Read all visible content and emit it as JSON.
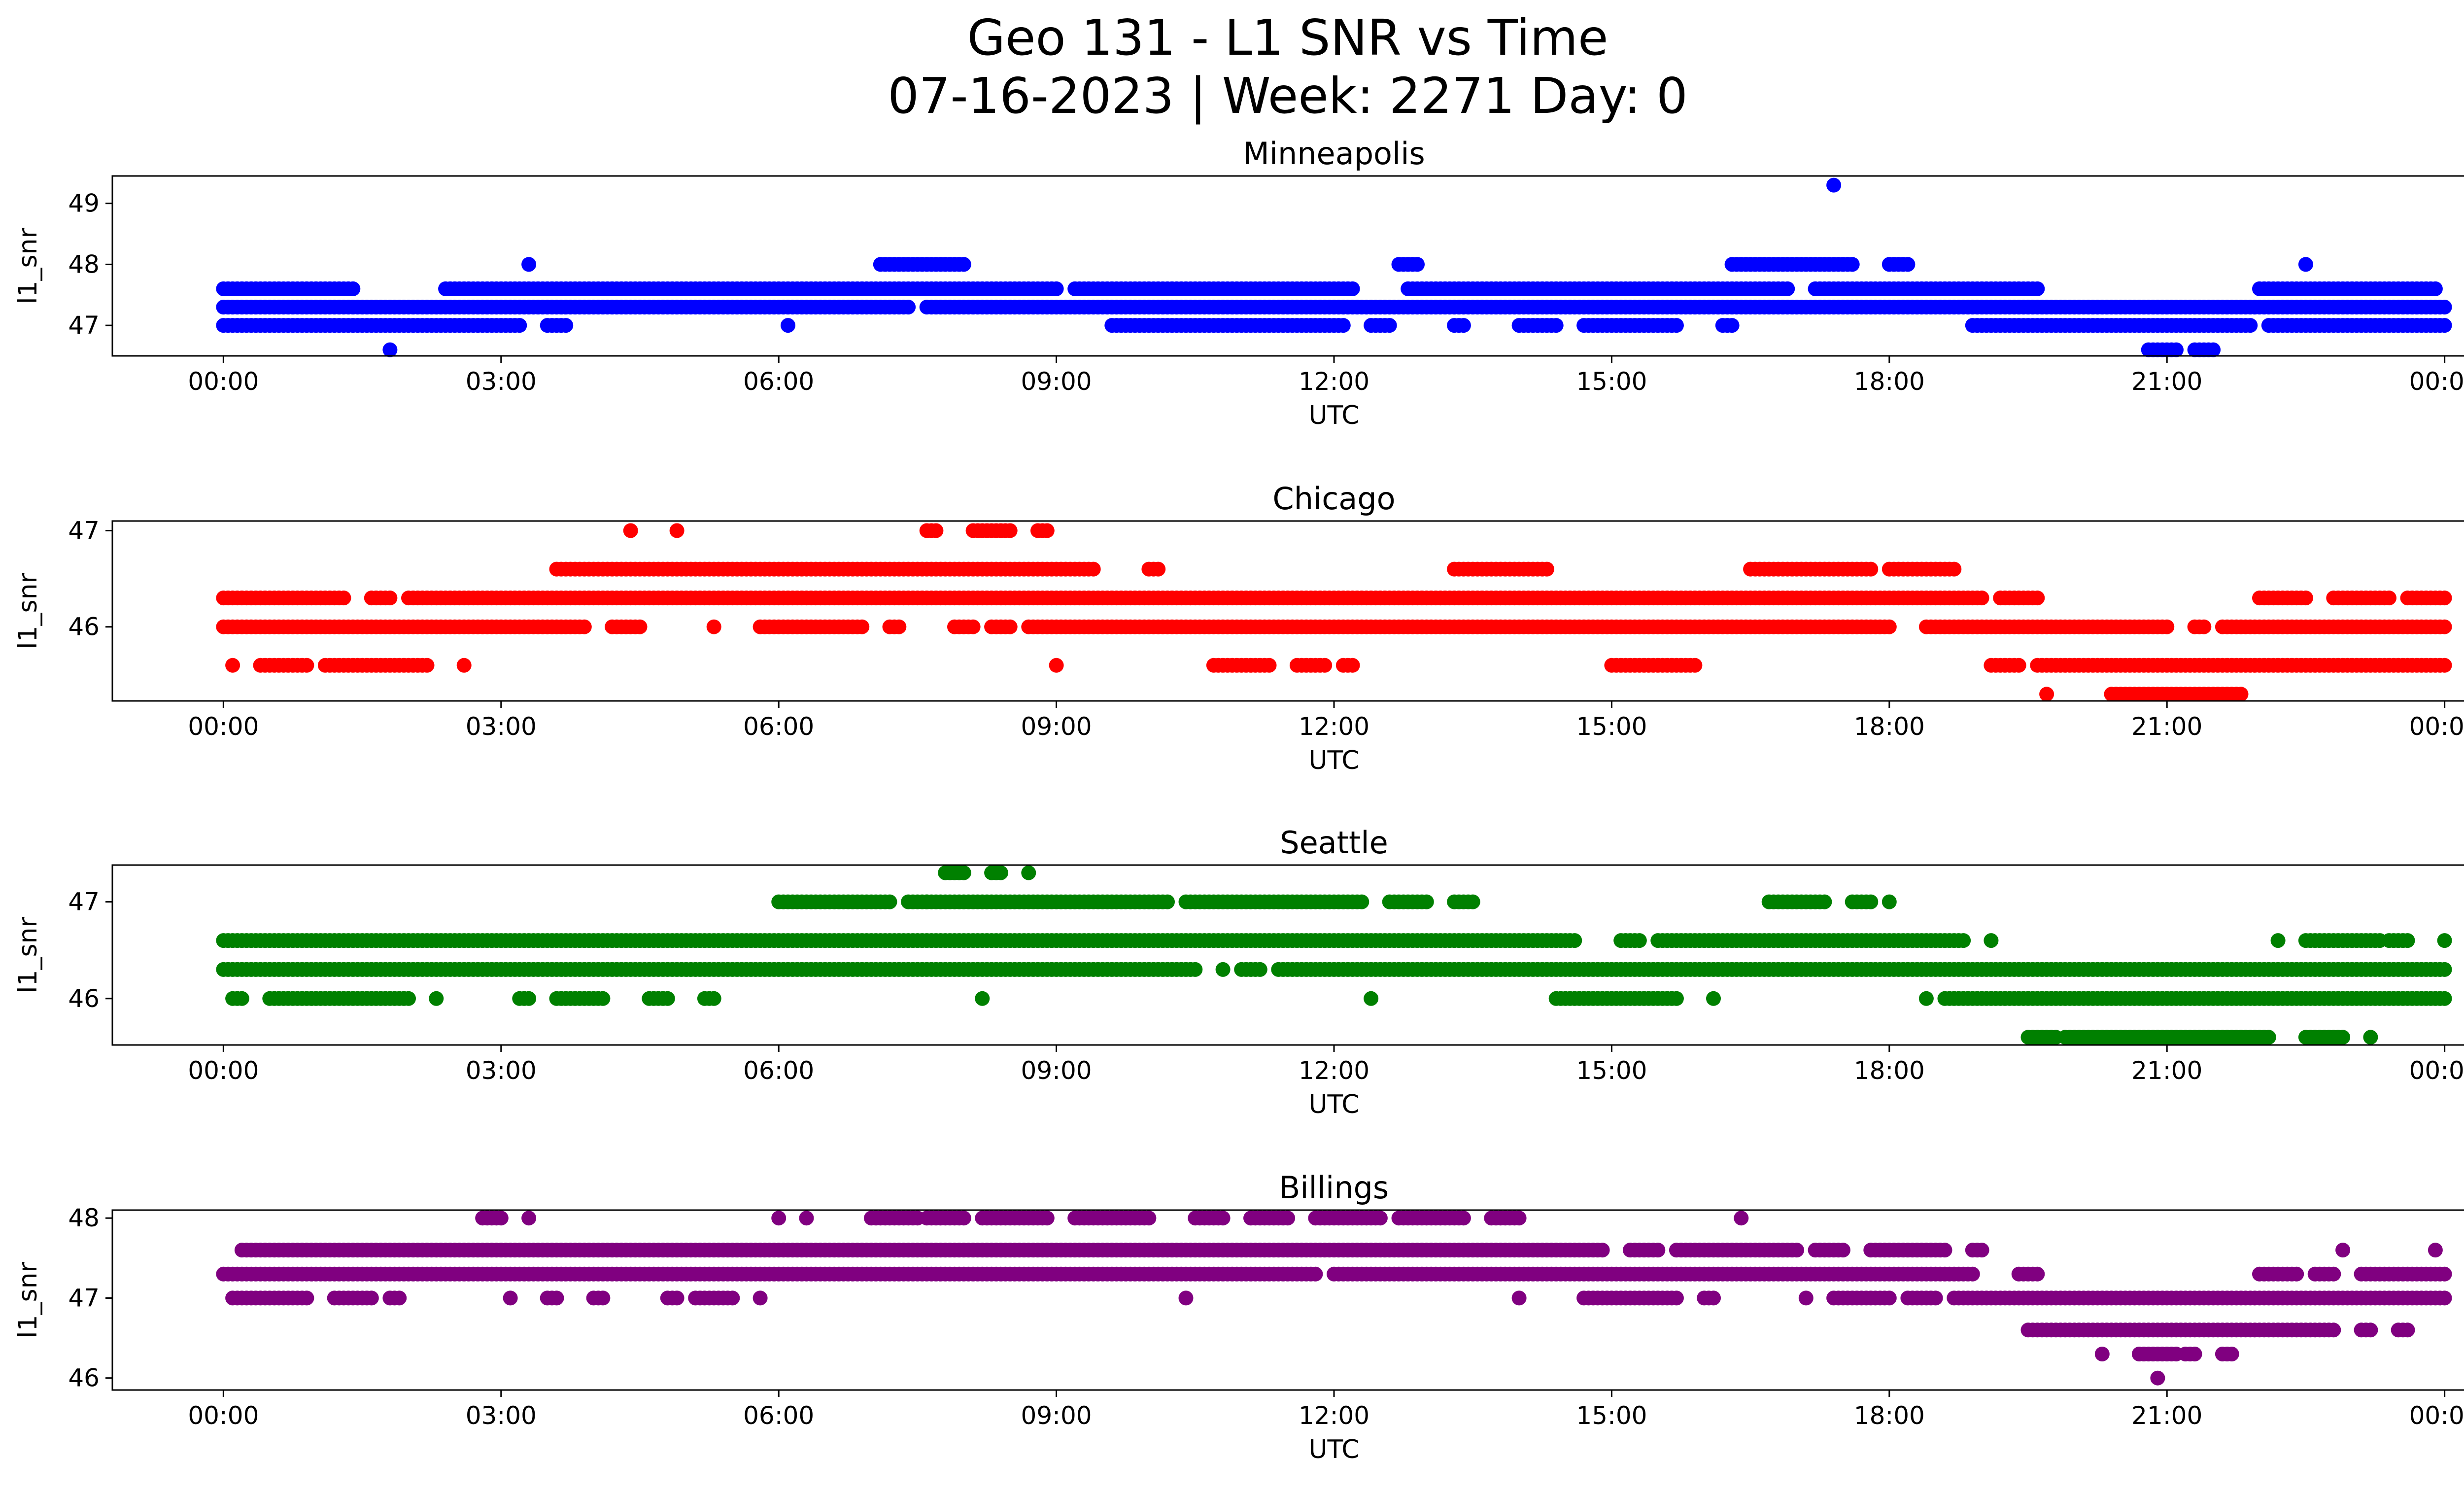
{
  "figure": {
    "title_line1": "Geo 131 - L1 SNR vs Time",
    "title_line2": "07-16-2023 | Week: 2271 Day: 0"
  },
  "chart_data": [
    {
      "type": "scatter",
      "title": "Minneapolis",
      "xlabel": "UTC",
      "ylabel": "l1_snr",
      "color": "#0000ff",
      "xticks": [
        "00:00",
        "03:00",
        "06:00",
        "09:00",
        "12:00",
        "15:00",
        "18:00",
        "21:00",
        "00:00"
      ],
      "xlim_hours": [
        -1.2,
        25.2
      ],
      "yticks": [
        47,
        48,
        49
      ],
      "ylim": [
        46.5,
        49.45
      ],
      "series": [
        {
          "name": "",
          "points": [
            {
              "y": 47.6,
              "segments": [
                [
                  0.0,
                  1.4
                ],
                [
                  2.4,
                  9.0
                ],
                [
                  9.2,
                  12.2
                ],
                [
                  12.8,
                  16.9
                ],
                [
                  17.2,
                  19.6
                ],
                [
                  22.0,
                  23.9
                ]
              ]
            },
            {
              "y": 47.3,
              "segments": [
                [
                  0.0,
                  7.4
                ],
                [
                  7.6,
                  24.0
                ]
              ]
            },
            {
              "y": 47.0,
              "segments": [
                [
                  0.0,
                  3.2
                ],
                [
                  3.5,
                  3.7
                ],
                [
                  6.1,
                  6.1
                ],
                [
                  9.6,
                  12.1
                ],
                [
                  12.4,
                  12.6
                ],
                [
                  13.3,
                  13.4
                ],
                [
                  14.0,
                  14.4
                ],
                [
                  14.7,
                  15.7
                ],
                [
                  16.2,
                  16.3
                ],
                [
                  18.9,
                  21.9
                ],
                [
                  22.1,
                  24.0
                ]
              ]
            },
            {
              "y": 46.6,
              "segments": [
                [
                  1.8,
                  1.8
                ],
                [
                  20.8,
                  21.1
                ],
                [
                  21.3,
                  21.5
                ]
              ]
            },
            {
              "y": 48.0,
              "segments": [
                [
                  3.3,
                  3.3
                ],
                [
                  7.1,
                  8.0
                ],
                [
                  12.7,
                  12.9
                ],
                [
                  16.3,
                  17.6
                ],
                [
                  18.0,
                  18.2
                ],
                [
                  22.5,
                  22.5
                ]
              ]
            },
            {
              "y": 49.3,
              "segments": [
                [
                  17.4,
                  17.4
                ]
              ]
            }
          ]
        }
      ]
    },
    {
      "type": "scatter",
      "title": "Chicago",
      "xlabel": "UTC",
      "ylabel": "l1_snr",
      "color": "#ff0000",
      "xticks": [
        "00:00",
        "03:00",
        "06:00",
        "09:00",
        "12:00",
        "15:00",
        "18:00",
        "21:00",
        "00:00"
      ],
      "xlim_hours": [
        -1.2,
        25.2
      ],
      "yticks": [
        46,
        47
      ],
      "ylim": [
        45.23,
        47.1
      ],
      "series": [
        {
          "name": "",
          "points": [
            {
              "y": 47.0,
              "segments": [
                [
                  4.4,
                  4.4
                ],
                [
                  4.9,
                  4.9
                ],
                [
                  7.6,
                  7.7
                ],
                [
                  8.1,
                  8.5
                ],
                [
                  8.8,
                  8.9
                ]
              ]
            },
            {
              "y": 46.6,
              "segments": [
                [
                  3.6,
                  9.4
                ],
                [
                  10.0,
                  10.1
                ],
                [
                  13.3,
                  14.3
                ],
                [
                  16.5,
                  17.8
                ],
                [
                  18.0,
                  18.7
                ]
              ]
            },
            {
              "y": 46.3,
              "segments": [
                [
                  0.0,
                  1.3
                ],
                [
                  1.6,
                  1.8
                ],
                [
                  2.0,
                  19.0
                ],
                [
                  19.2,
                  19.6
                ],
                [
                  22.0,
                  22.5
                ],
                [
                  22.8,
                  23.4
                ],
                [
                  23.6,
                  24.0
                ]
              ]
            },
            {
              "y": 46.0,
              "segments": [
                [
                  0.0,
                  3.9
                ],
                [
                  4.2,
                  4.5
                ],
                [
                  5.3,
                  5.3
                ],
                [
                  5.8,
                  6.9
                ],
                [
                  7.2,
                  7.3
                ],
                [
                  7.9,
                  8.1
                ],
                [
                  8.3,
                  8.5
                ],
                [
                  8.7,
                  18.0
                ],
                [
                  18.4,
                  21.0
                ],
                [
                  21.3,
                  21.4
                ],
                [
                  21.6,
                  24.0
                ]
              ]
            },
            {
              "y": 45.6,
              "segments": [
                [
                  0.1,
                  0.1
                ],
                [
                  0.4,
                  0.9
                ],
                [
                  1.1,
                  2.2
                ],
                [
                  2.6,
                  2.6
                ],
                [
                  9.0,
                  9.0
                ],
                [
                  10.7,
                  11.3
                ],
                [
                  11.6,
                  11.9
                ],
                [
                  12.1,
                  12.2
                ],
                [
                  15.0,
                  15.9
                ],
                [
                  19.1,
                  19.4
                ],
                [
                  19.6,
                  24.0
                ]
              ]
            },
            {
              "y": 45.3,
              "segments": [
                [
                  19.7,
                  19.7
                ],
                [
                  20.4,
                  21.8
                ]
              ]
            }
          ]
        }
      ]
    },
    {
      "type": "scatter",
      "title": "Seattle",
      "xlabel": "UTC",
      "ylabel": "l1_snr",
      "color": "#008000",
      "xticks": [
        "00:00",
        "03:00",
        "06:00",
        "09:00",
        "12:00",
        "15:00",
        "18:00",
        "21:00",
        "00:00"
      ],
      "xlim_hours": [
        -1.2,
        25.2
      ],
      "yticks": [
        46,
        47
      ],
      "ylim": [
        45.52,
        47.38
      ],
      "series": [
        {
          "name": "",
          "points": [
            {
              "y": 47.3,
              "segments": [
                [
                  7.8,
                  8.0
                ],
                [
                  8.3,
                  8.4
                ],
                [
                  8.7,
                  8.7
                ]
              ]
            },
            {
              "y": 47.0,
              "segments": [
                [
                  6.0,
                  7.2
                ],
                [
                  7.4,
                  7.6
                ],
                [
                  7.6,
                  10.2
                ],
                [
                  10.4,
                  12.3
                ],
                [
                  12.6,
                  13.0
                ],
                [
                  13.3,
                  13.5
                ],
                [
                  16.7,
                  17.3
                ],
                [
                  17.6,
                  17.8
                ],
                [
                  18.0,
                  18.0
                ]
              ]
            },
            {
              "y": 46.6,
              "segments": [
                [
                  0.0,
                  14.6
                ],
                [
                  15.1,
                  15.3
                ],
                [
                  15.5,
                  18.8
                ],
                [
                  19.1,
                  19.1
                ],
                [
                  22.2,
                  22.2
                ],
                [
                  22.5,
                  23.3
                ],
                [
                  23.4,
                  23.6
                ],
                [
                  24.0,
                  24.0
                ]
              ]
            },
            {
              "y": 46.3,
              "segments": [
                [
                  0.0,
                  10.5
                ],
                [
                  10.8,
                  10.8
                ],
                [
                  11.0,
                  11.2
                ],
                [
                  11.4,
                  24.0
                ]
              ]
            },
            {
              "y": 46.0,
              "segments": [
                [
                  0.1,
                  0.2
                ],
                [
                  0.5,
                  2.0
                ],
                [
                  2.3,
                  2.3
                ],
                [
                  3.2,
                  3.3
                ],
                [
                  3.6,
                  4.1
                ],
                [
                  4.6,
                  4.8
                ],
                [
                  5.2,
                  5.3
                ],
                [
                  8.2,
                  8.2
                ],
                [
                  12.4,
                  12.4
                ],
                [
                  14.4,
                  15.7
                ],
                [
                  16.1,
                  16.1
                ],
                [
                  18.4,
                  18.4
                ],
                [
                  18.6,
                  24.0
                ]
              ]
            },
            {
              "y": 45.6,
              "segments": [
                [
                  19.5,
                  19.8
                ],
                [
                  19.9,
                  22.1
                ],
                [
                  22.5,
                  22.9
                ],
                [
                  23.2,
                  23.2
                ]
              ]
            }
          ]
        }
      ]
    },
    {
      "type": "scatter",
      "title": "Billings",
      "xlabel": "UTC",
      "ylabel": "l1_snr",
      "color": "#800080",
      "xticks": [
        "00:00",
        "03:00",
        "06:00",
        "09:00",
        "12:00",
        "15:00",
        "18:00",
        "21:00",
        "00:00"
      ],
      "xlim_hours": [
        -1.2,
        25.2
      ],
      "yticks": [
        46,
        47,
        48
      ],
      "ylim": [
        45.85,
        48.1
      ],
      "series": [
        {
          "name": "",
          "points": [
            {
              "y": 48.0,
              "segments": [
                [
                  2.8,
                  3.0
                ],
                [
                  3.3,
                  3.3
                ],
                [
                  6.0,
                  6.0
                ],
                [
                  6.3,
                  6.3
                ],
                [
                  7.0,
                  7.5
                ],
                [
                  7.6,
                  8.0
                ],
                [
                  8.2,
                  8.9
                ],
                [
                  9.2,
                  10.0
                ],
                [
                  10.5,
                  10.8
                ],
                [
                  11.1,
                  11.5
                ],
                [
                  11.8,
                  12.5
                ],
                [
                  12.7,
                  13.4
                ],
                [
                  13.7,
                  14.0
                ],
                [
                  16.4,
                  16.4
                ]
              ]
            },
            {
              "y": 47.6,
              "segments": [
                [
                  0.2,
                  14.9
                ],
                [
                  15.2,
                  15.5
                ],
                [
                  15.7,
                  17.0
                ],
                [
                  17.2,
                  17.5
                ],
                [
                  17.8,
                  18.6
                ],
                [
                  18.9,
                  19.0
                ],
                [
                  22.9,
                  22.9
                ],
                [
                  23.9,
                  23.9
                ]
              ]
            },
            {
              "y": 47.3,
              "segments": [
                [
                  0.0,
                  11.8
                ],
                [
                  12.0,
                  18.9
                ],
                [
                  19.4,
                  19.6
                ],
                [
                  22.0,
                  22.4
                ],
                [
                  22.6,
                  22.8
                ],
                [
                  23.1,
                  24.0
                ]
              ]
            },
            {
              "y": 47.0,
              "segments": [
                [
                  0.1,
                  0.9
                ],
                [
                  1.2,
                  1.6
                ],
                [
                  1.8,
                  1.9
                ],
                [
                  3.1,
                  3.1
                ],
                [
                  3.5,
                  3.6
                ],
                [
                  4.0,
                  4.1
                ],
                [
                  4.8,
                  4.9
                ],
                [
                  5.1,
                  5.5
                ],
                [
                  5.8,
                  5.8
                ],
                [
                  10.4,
                  10.4
                ],
                [
                  14.0,
                  14.0
                ],
                [
                  14.7,
                  15.7
                ],
                [
                  16.0,
                  16.1
                ],
                [
                  17.1,
                  17.1
                ],
                [
                  17.4,
                  18.0
                ],
                [
                  18.2,
                  18.5
                ],
                [
                  18.7,
                  24.0
                ]
              ]
            },
            {
              "y": 46.6,
              "segments": [
                [
                  19.5,
                  22.8
                ],
                [
                  23.1,
                  23.2
                ],
                [
                  23.5,
                  23.6
                ]
              ]
            },
            {
              "y": 46.3,
              "segments": [
                [
                  20.3,
                  20.3
                ],
                [
                  20.7,
                  21.1
                ],
                [
                  21.2,
                  21.3
                ],
                [
                  21.6,
                  21.7
                ]
              ]
            },
            {
              "y": 46.0,
              "segments": [
                [
                  20.9,
                  20.9
                ]
              ]
            }
          ]
        }
      ]
    }
  ]
}
